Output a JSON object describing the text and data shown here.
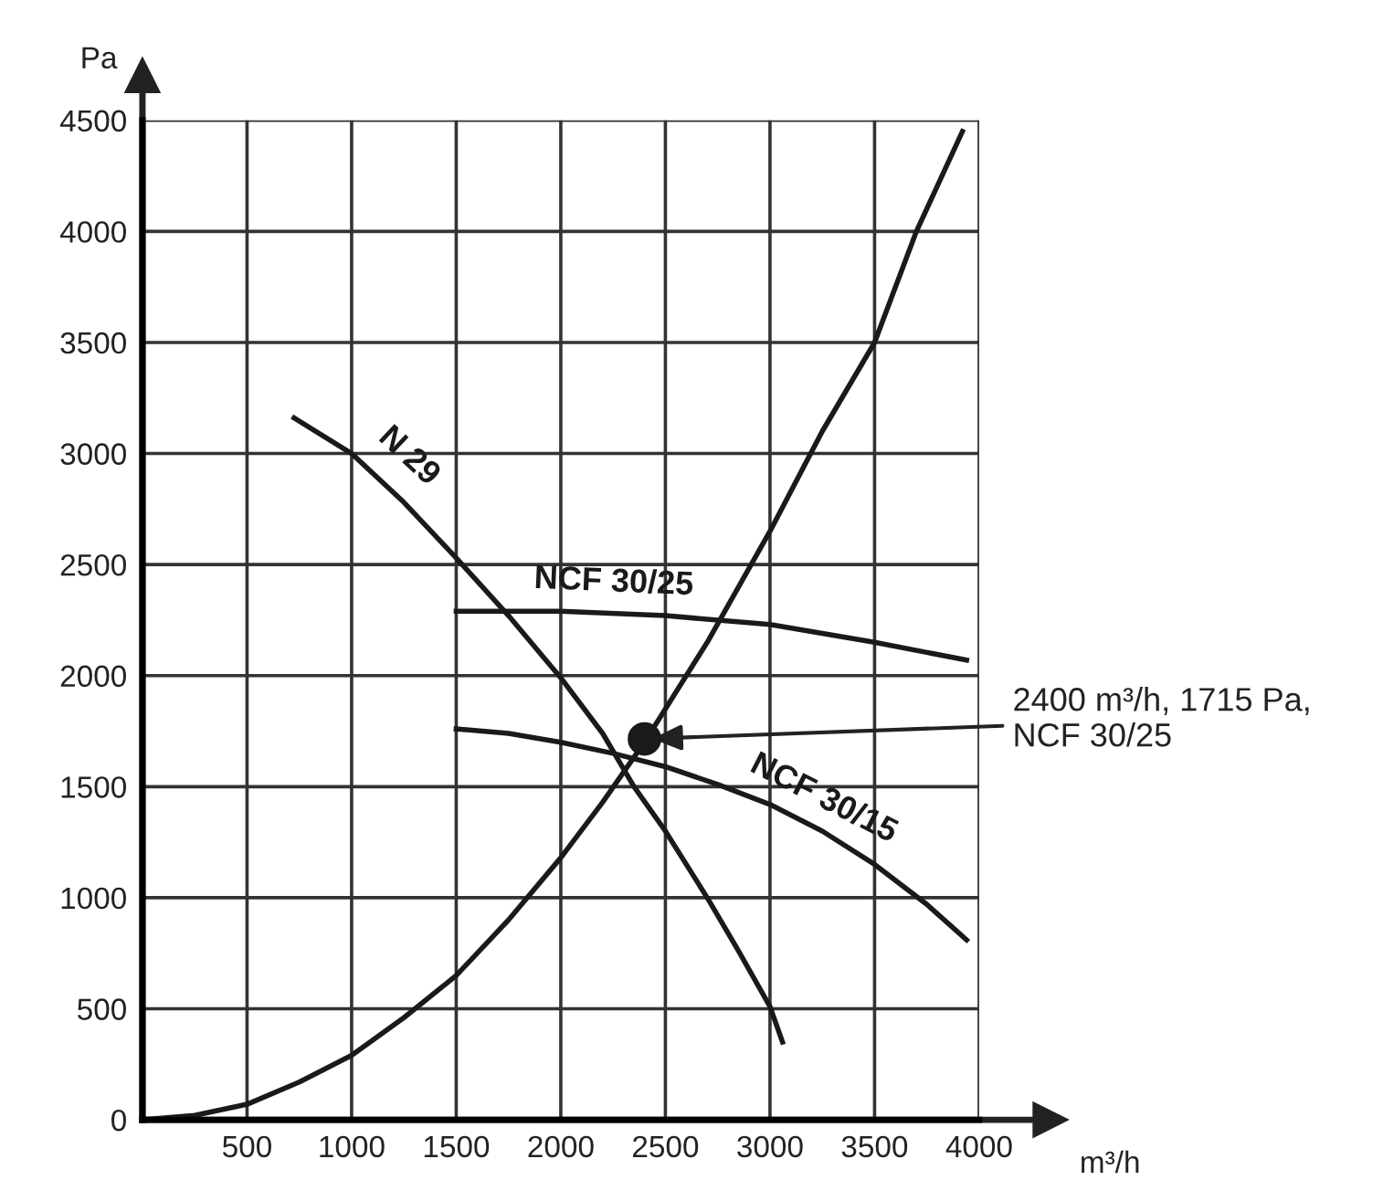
{
  "chart_data": {
    "type": "line",
    "xlabel": "m³/h",
    "ylabel": "Pa",
    "xlim": [
      0,
      4000
    ],
    "ylim": [
      0,
      4500
    ],
    "xticks": [
      {
        "value": 0,
        "label": null
      },
      500,
      1000,
      1500,
      2000,
      2500,
      3000,
      3500,
      4000
    ],
    "yticks": [
      0,
      500,
      1000,
      1500,
      2000,
      2500,
      3000,
      3500,
      4000,
      4500
    ],
    "grid": true,
    "line_style": "solid",
    "marker": "none",
    "series": [
      {
        "color": "#1a1a1a",
        "x": [
          0,
          250,
          500,
          750,
          1000,
          1250,
          1500,
          1750,
          2000,
          2200,
          2400,
          2700,
          3000,
          3250,
          3500,
          3700,
          3920
        ],
        "values": [
          0,
          20,
          70,
          170,
          290,
          460,
          650,
          900,
          1180,
          1430,
          1700,
          2150,
          2650,
          3100,
          3500,
          4000,
          4450
        ]
      },
      {
        "name": "N 29",
        "color": "#1a1a1a",
        "x": [
          725,
          1000,
          1250,
          1500,
          1750,
          2000,
          2200,
          2350,
          2500,
          2700,
          2850,
          3000,
          3060
        ],
        "values": [
          3160,
          3000,
          2780,
          2530,
          2270,
          1990,
          1740,
          1500,
          1300,
          1000,
          760,
          510,
          350
        ]
      },
      {
        "name": "NCF 30/25",
        "color": "#1a1a1a",
        "x": [
          1500,
          2000,
          2500,
          3000,
          3500,
          3940
        ],
        "values": [
          2290,
          2290,
          2270,
          2230,
          2150,
          2070
        ]
      },
      {
        "name": "NCF 30/15",
        "color": "#1a1a1a",
        "x": [
          1500,
          1750,
          2000,
          2250,
          2500,
          2750,
          3000,
          3250,
          3500,
          3750,
          3940
        ],
        "values": [
          1760,
          1740,
          1700,
          1650,
          1590,
          1510,
          1420,
          1300,
          1150,
          970,
          810
        ]
      },
      {
        "type": "scatter",
        "marker": "circle",
        "color": "#1a1a1a",
        "x": [
          2400
        ],
        "values": [
          1715
        ]
      }
    ],
    "annotations": [
      {
        "text": "2400 m³/h, 1715 Pa,\nNCF 30/25",
        "x": 2400,
        "y": 1715
      }
    ]
  }
}
